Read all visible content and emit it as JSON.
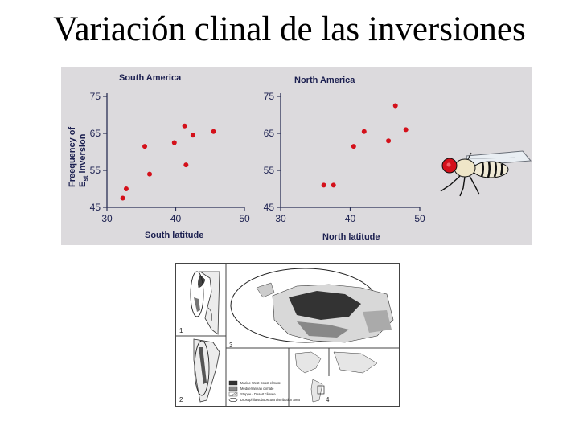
{
  "slide": {
    "title": "Variación clinal de las inversiones"
  },
  "chart_data": [
    {
      "type": "scatter",
      "title": "South America",
      "xlabel": "South latitude",
      "ylabel_line1": "Freequency of",
      "ylabel_e": "E",
      "ylabel_sub": "st",
      "ylabel_rest": " inversion",
      "xlim": [
        30,
        50
      ],
      "ylim": [
        45,
        75
      ],
      "xticks": [
        30,
        40,
        50
      ],
      "yticks": [
        45,
        55,
        65,
        75
      ],
      "grid": false,
      "point_color": "#d4101a",
      "points": [
        {
          "x": 32.3,
          "y": 47.5
        },
        {
          "x": 32.8,
          "y": 50.0
        },
        {
          "x": 35.5,
          "y": 61.5
        },
        {
          "x": 36.2,
          "y": 54.0
        },
        {
          "x": 39.8,
          "y": 62.5
        },
        {
          "x": 41.3,
          "y": 67.0
        },
        {
          "x": 41.5,
          "y": 56.5
        },
        {
          "x": 42.5,
          "y": 64.5
        },
        {
          "x": 45.5,
          "y": 65.5
        }
      ]
    },
    {
      "type": "scatter",
      "title": "North America",
      "xlabel": "North latitude",
      "xlim": [
        30,
        50
      ],
      "ylim": [
        45,
        75
      ],
      "xticks": [
        30,
        40,
        50
      ],
      "yticks": [
        45,
        55,
        65,
        75
      ],
      "grid": false,
      "point_color": "#d4101a",
      "points": [
        {
          "x": 36.2,
          "y": 51.0
        },
        {
          "x": 37.6,
          "y": 51.0
        },
        {
          "x": 40.5,
          "y": 61.5
        },
        {
          "x": 42.0,
          "y": 65.5
        },
        {
          "x": 45.5,
          "y": 63.0
        },
        {
          "x": 46.5,
          "y": 72.5
        },
        {
          "x": 48.0,
          "y": 66.0
        }
      ]
    }
  ],
  "fly": {
    "icon": "fruit-fly-icon"
  },
  "map": {
    "panel_numbers": [
      "1",
      "2",
      "3",
      "4"
    ],
    "legend": [
      "Marine West Coast climate",
      "Mediterranean climate",
      "Steppe - Desert climate",
      "Drosophila subobscura distribution area"
    ]
  }
}
